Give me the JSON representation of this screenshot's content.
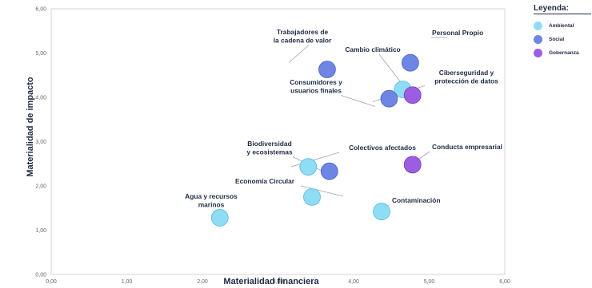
{
  "chart_data": {
    "type": "scatter",
    "title": "",
    "xlabel": "Materialidad financiera",
    "ylabel": "Materialidad de impacto",
    "xlim": [
      0,
      6
    ],
    "ylim": [
      0,
      6
    ],
    "x_ticks": [
      "0,00",
      "1,00",
      "2,00",
      "3,00",
      "4,00",
      "5,00",
      "6,00"
    ],
    "y_ticks": [
      "0,00",
      "1,00",
      "2,00",
      "3,00",
      "4,00",
      "5,00",
      "6,00"
    ],
    "grid": false,
    "legend": {
      "title": "Leyenda:",
      "position": "top-right",
      "items": [
        {
          "name": "Ambiental",
          "color": "#8fdcf5"
        },
        {
          "name": "Social",
          "color": "#6d86e3"
        },
        {
          "name": "Gobernanza",
          "color": "#9a5fe0"
        }
      ]
    },
    "points": [
      {
        "label": "Personal Propio",
        "x": 4.75,
        "y": 4.78,
        "category": "Social"
      },
      {
        "label": "Trabajadores de la cadena de valor",
        "x": 3.65,
        "y": 4.63,
        "category": "Social"
      },
      {
        "label": "Cambio climático",
        "x": 4.65,
        "y": 4.18,
        "category": "Ambiental"
      },
      {
        "label": "Ciberseguridad y protección de datos",
        "x": 4.78,
        "y": 4.05,
        "category": "Gobernanza"
      },
      {
        "label": "Consumidores y usuarios finales",
        "x": 4.47,
        "y": 3.97,
        "category": "Social"
      },
      {
        "label": "Biodiversidad y ecosistemas",
        "x": 3.4,
        "y": 2.43,
        "category": "Ambiental"
      },
      {
        "label": "Colectivos afectados",
        "x": 3.68,
        "y": 2.33,
        "category": "Social"
      },
      {
        "label": "Conducta empresarial",
        "x": 4.78,
        "y": 2.48,
        "category": "Gobernanza"
      },
      {
        "label": "Economía Circular",
        "x": 3.45,
        "y": 1.75,
        "category": "Ambiental"
      },
      {
        "label": "Contaminación",
        "x": 4.37,
        "y": 1.42,
        "category": "Ambiental"
      },
      {
        "label": "Agua y recursos marinos",
        "x": 2.23,
        "y": 1.28,
        "category": "Ambiental"
      }
    ]
  }
}
